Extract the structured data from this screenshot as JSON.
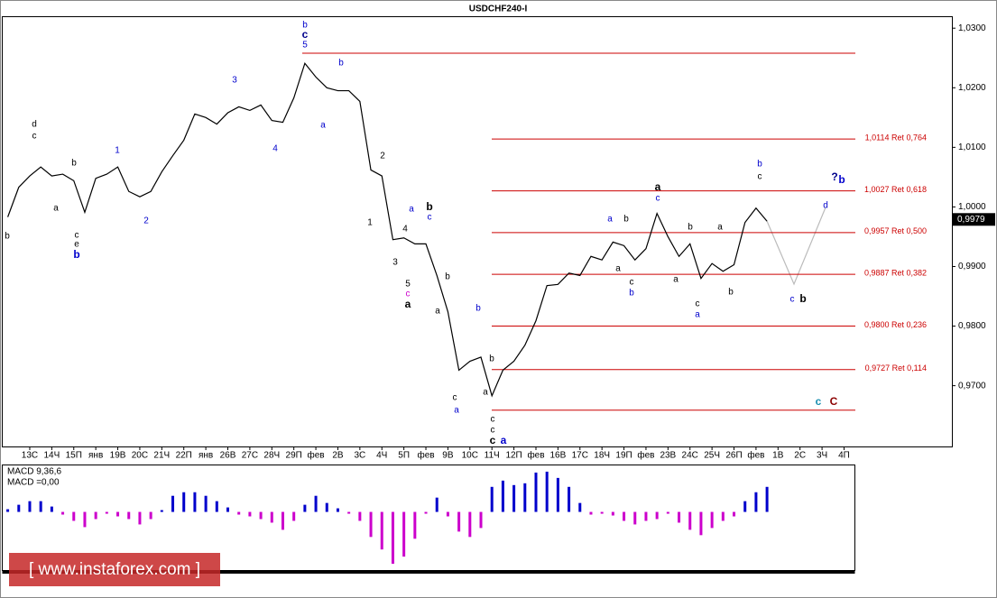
{
  "chart_data": {
    "type": "line",
    "title": "USDCHF240-I",
    "categories": [
      "13С",
      "14Ч",
      "15П",
      "янв",
      "19В",
      "20С",
      "21Ч",
      "22П",
      "янв",
      "26В",
      "27С",
      "28Ч",
      "29П",
      "фев",
      "2В",
      "3С",
      "4Ч",
      "5П",
      "фев",
      "9В",
      "10С",
      "11Ч",
      "12П",
      "фев",
      "16В",
      "17С",
      "18Ч",
      "19П",
      "фев",
      "23В",
      "24С",
      "25Ч",
      "26П",
      "фев",
      "1В",
      "2С",
      "3Ч",
      "4П"
    ],
    "xlim": [
      -1.27,
      41.9
    ],
    "ylim": [
      0.9598,
      1.032
    ],
    "yticks": [
      {
        "value": 1.03,
        "label": "1,0300"
      },
      {
        "value": 1.02,
        "label": "1,0200"
      },
      {
        "value": 1.01,
        "label": "1,0100"
      },
      {
        "value": 1.0,
        "label": "1,0000"
      },
      {
        "value": 0.99,
        "label": "0,9900"
      },
      {
        "value": 0.98,
        "label": "0,9800"
      },
      {
        "value": 0.97,
        "label": "0,9700"
      }
    ],
    "last_price": {
      "value": 0.9979,
      "label": "0,9979"
    },
    "series": [
      {
        "name": "USDCHF",
        "color": "#000000",
        "x": [
          -1.0,
          -0.5,
          0,
          0.5,
          1.0,
          1.5,
          2.0,
          2.5,
          3.0,
          3.5,
          4.0,
          4.5,
          5.0,
          5.5,
          6.0,
          6.5,
          7.0,
          7.5,
          8.0,
          8.5,
          9.0,
          9.5,
          10.0,
          10.5,
          11.0,
          11.5,
          12.0,
          12.5,
          13.0,
          13.5,
          14.0,
          14.5,
          15.0,
          15.5,
          16.0,
          16.5,
          17.0,
          17.5,
          18.0,
          18.5,
          19.0,
          19.5,
          20.0,
          20.5,
          21.0,
          21.5,
          22.0,
          22.5,
          23.0,
          23.5,
          24.0,
          24.5,
          25.0,
          25.5,
          26.0,
          26.5,
          27.0,
          27.5,
          28.0,
          28.5,
          29.0,
          29.5,
          30.0,
          30.5,
          31.0,
          31.5,
          32.0,
          32.5,
          33.0,
          33.5
        ],
        "values": [
          0.9983,
          1.0033,
          1.0052,
          1.0067,
          1.0052,
          1.0055,
          1.0044,
          0.9991,
          1.0048,
          1.0055,
          1.0067,
          1.0026,
          1.0017,
          1.0026,
          1.0059,
          1.0086,
          1.0112,
          1.0156,
          1.015,
          1.0139,
          1.0158,
          1.0168,
          1.0162,
          1.0171,
          1.0145,
          1.0142,
          1.0183,
          1.0241,
          1.0218,
          1.02,
          1.0195,
          1.0195,
          1.0177,
          1.0062,
          1.0052,
          0.9945,
          0.9948,
          0.9938,
          0.9938,
          0.9885,
          0.9824,
          0.9726,
          0.9741,
          0.9748,
          0.9683,
          0.9726,
          0.9741,
          0.9768,
          0.9809,
          0.9868,
          0.987,
          0.9889,
          0.9885,
          0.9917,
          0.9911,
          0.9941,
          0.9935,
          0.9911,
          0.993,
          0.9989,
          0.995,
          0.9917,
          0.9938,
          0.988,
          0.9905,
          0.9892,
          0.9903,
          0.9974,
          0.9998,
          0.9976
        ]
      }
    ],
    "levels": [
      {
        "value": 1.0114,
        "label": "1,0114 Ret 0,764"
      },
      {
        "value": 1.0027,
        "label": "1,0027 Ret 0,618"
      },
      {
        "value": 0.9957,
        "label": "0,9957 Ret 0,500"
      },
      {
        "value": 0.9887,
        "label": "0,9887 Ret 0,382"
      },
      {
        "value": 0.98,
        "label": "0,9800 Ret 0,236"
      },
      {
        "value": 0.9727,
        "label": "0,9727 Ret 0,114"
      }
    ],
    "level_color": "#cc0000",
    "range_levels": [
      1.0258,
      0.9659
    ],
    "wave_labels": [
      {
        "text": "d",
        "color": "#000000"
      },
      {
        "text": "c",
        "color": "#000000"
      },
      {
        "text": "b",
        "color": "#000000"
      },
      {
        "text": "a",
        "color": "#000000"
      },
      {
        "text": "b",
        "color": "#000000"
      },
      {
        "text": "c",
        "color": "#000000"
      },
      {
        "text": "e",
        "color": "#000000"
      },
      {
        "text": "b",
        "color": "#0000cc"
      },
      {
        "text": "1",
        "color": "#0000cc"
      },
      {
        "text": "2",
        "color": "#0000cc"
      },
      {
        "text": "3",
        "color": "#0000cc"
      },
      {
        "text": "4",
        "color": "#0000cc"
      },
      {
        "text": "b",
        "color": "#0000cc"
      },
      {
        "text": "c",
        "color": "#00008b"
      },
      {
        "text": "5",
        "color": "#0000cc"
      },
      {
        "text": "b",
        "color": "#0000cc"
      },
      {
        "text": "a",
        "color": "#0000cc"
      },
      {
        "text": "2",
        "color": "#000000"
      },
      {
        "text": "1",
        "color": "#000000"
      },
      {
        "text": "3",
        "color": "#000000"
      },
      {
        "text": "4",
        "color": "#000000"
      },
      {
        "text": "5",
        "color": "#000000"
      },
      {
        "text": "c",
        "color": "#cc00cc"
      },
      {
        "text": "a",
        "color": "#000000"
      },
      {
        "text": "a",
        "color": "#0000cc"
      },
      {
        "text": "b",
        "color": "#000000"
      },
      {
        "text": "c",
        "color": "#0000cc"
      },
      {
        "text": "b",
        "color": "#000000"
      },
      {
        "text": "a",
        "color": "#000000"
      },
      {
        "text": "b",
        "color": "#0000cc"
      },
      {
        "text": "b",
        "color": "#000000"
      },
      {
        "text": "c",
        "color": "#000000"
      },
      {
        "text": "a",
        "color": "#0000cc"
      },
      {
        "text": "a",
        "color": "#000000"
      },
      {
        "text": "c",
        "color": "#000000"
      },
      {
        "text": "c",
        "color": "#000000"
      },
      {
        "text": "c",
        "color": "#000000"
      },
      {
        "text": "a",
        "color": "#0000cc"
      },
      {
        "text": "a",
        "color": "#000000"
      },
      {
        "text": "c",
        "color": "#0000cc"
      },
      {
        "text": "a",
        "color": "#0000cc"
      },
      {
        "text": "b",
        "color": "#000000"
      },
      {
        "text": "a",
        "color": "#000000"
      },
      {
        "text": "c",
        "color": "#000000"
      },
      {
        "text": "b",
        "color": "#0000cc"
      },
      {
        "text": "a",
        "color": "#000000"
      },
      {
        "text": "b",
        "color": "#000000"
      },
      {
        "text": "a",
        "color": "#000000"
      },
      {
        "text": "c",
        "color": "#000000"
      },
      {
        "text": "a",
        "color": "#0000cc"
      },
      {
        "text": "b",
        "color": "#000000"
      },
      {
        "text": "b",
        "color": "#0000cc"
      },
      {
        "text": "c",
        "color": "#000000"
      },
      {
        "text": "?",
        "color": "#00008b"
      },
      {
        "text": "b",
        "color": "#0000cc"
      },
      {
        "text": "d",
        "color": "#0000cc"
      },
      {
        "text": "c",
        "color": "#0000cc"
      },
      {
        "text": "b",
        "color": "#000000"
      },
      {
        "text": "c",
        "color": "#1a8fb0"
      },
      {
        "text": "C",
        "color": "#8b0000"
      }
    ],
    "macd": {
      "label": "MACD 9,36,6",
      "value_label": "MACD =0,00",
      "ylim": [
        -0.0065,
        0.0052
      ],
      "up_color": "#0000cc",
      "down_color": "#cc00cc",
      "values": [
        0.0003,
        0.0008,
        0.0012,
        0.0012,
        0.0006,
        -0.0003,
        -0.001,
        -0.0017,
        -0.0008,
        -0.0002,
        -0.0005,
        -0.0008,
        -0.0014,
        -0.0008,
        0.0002,
        0.0018,
        0.0022,
        0.0022,
        0.0018,
        0.0012,
        0.0005,
        -0.0003,
        -0.0005,
        -0.0008,
        -0.0012,
        -0.002,
        -0.001,
        0.0008,
        0.0018,
        0.001,
        0.0004,
        -0.0002,
        -0.001,
        -0.0028,
        -0.0042,
        -0.0058,
        -0.005,
        -0.003,
        -0.0002,
        0.0016,
        -0.0005,
        -0.0022,
        -0.0028,
        -0.0018,
        0.0028,
        0.0035,
        0.003,
        0.0032,
        0.0044,
        0.0045,
        0.0038,
        0.0028,
        0.001,
        -0.0003,
        -0.0002,
        -0.0004,
        -0.001,
        -0.0014,
        -0.001,
        -0.0008,
        -0.0002,
        -0.0012,
        -0.002,
        -0.0026,
        -0.0018,
        -0.001,
        -0.0005,
        0.0012,
        0.0022,
        0.0028
      ]
    },
    "watermark": "[ www.instaforex.com ]"
  }
}
